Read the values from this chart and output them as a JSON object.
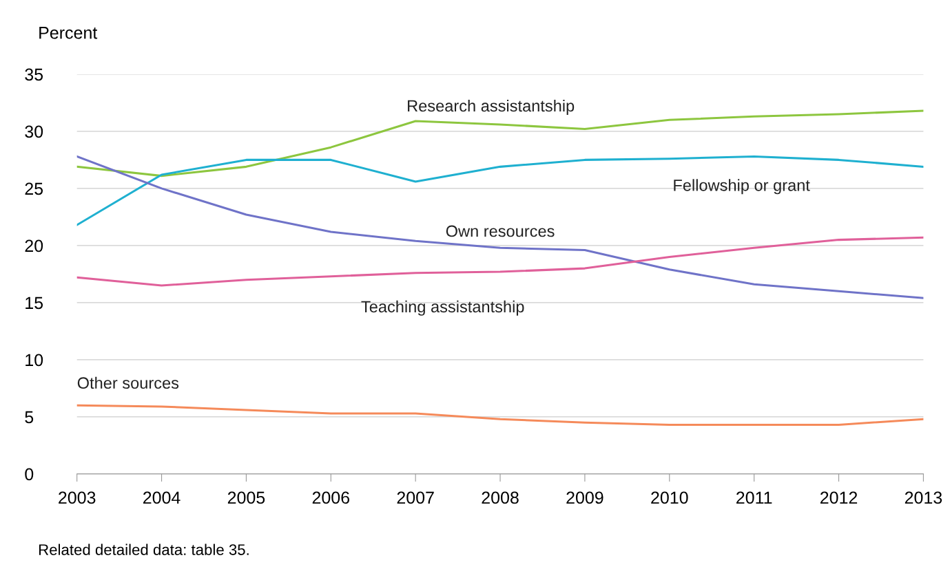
{
  "chart_data": {
    "type": "line",
    "ylabel": "Percent",
    "x": [
      2003,
      2004,
      2005,
      2006,
      2007,
      2008,
      2009,
      2010,
      2011,
      2012,
      2013
    ],
    "xlim": [
      2003,
      2013
    ],
    "xticks": [
      2003,
      2004,
      2005,
      2006,
      2007,
      2008,
      2009,
      2010,
      2011,
      2012,
      2013
    ],
    "ylim": [
      0,
      35
    ],
    "yticks": [
      0,
      5,
      10,
      15,
      20,
      25,
      30,
      35
    ],
    "grid": "y",
    "legend": false,
    "series": [
      {
        "name": "Research assistantship",
        "color": "#8dc63f",
        "values": [
          26.9,
          26.1,
          26.9,
          28.6,
          30.9,
          30.6,
          30.2,
          31.0,
          31.3,
          31.5,
          31.8
        ]
      },
      {
        "name": "Fellowship or grant",
        "color": "#1fb0d0",
        "values": [
          21.8,
          26.2,
          27.5,
          27.5,
          25.6,
          26.9,
          27.5,
          27.6,
          27.8,
          27.5,
          26.9
        ]
      },
      {
        "name": "Own resources",
        "color": "#6f73c8",
        "values": [
          27.8,
          25.0,
          22.7,
          21.2,
          20.4,
          19.8,
          19.6,
          17.9,
          16.6,
          16.0,
          15.4
        ]
      },
      {
        "name": "Teaching assistantship",
        "color": "#e0609a",
        "values": [
          17.2,
          16.5,
          17.0,
          17.3,
          17.6,
          17.7,
          18.0,
          19.0,
          19.8,
          20.5,
          20.7
        ]
      },
      {
        "name": "Other sources",
        "color": "#f58a5a",
        "values": [
          6.0,
          5.9,
          5.6,
          5.3,
          5.3,
          4.8,
          4.5,
          4.3,
          4.3,
          4.3,
          4.8
        ]
      }
    ],
    "annotations": [
      "Related detailed data: table 35."
    ]
  }
}
